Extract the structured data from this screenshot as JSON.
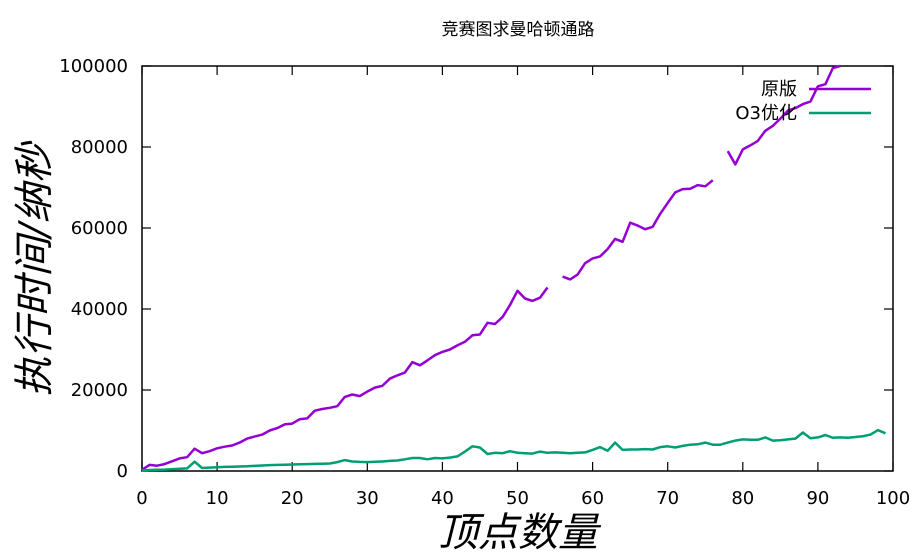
{
  "chart_data": {
    "type": "line",
    "title": "竞赛图求曼哈顿通路",
    "xlabel": "顶点数量",
    "ylabel": "执行时间/纳秒",
    "xlim": [
      0,
      100
    ],
    "ylim": [
      0,
      100000
    ],
    "x_ticks": [
      "0",
      "10",
      "20",
      "30",
      "40",
      "50",
      "60",
      "70",
      "80",
      "90",
      "100"
    ],
    "y_ticks": [
      "0",
      "20000",
      "40000",
      "60000",
      "80000",
      "100000"
    ],
    "legend_position": "top-right",
    "grid": false,
    "series": [
      {
        "name": "原版",
        "color": "#9400D3",
        "points": [
          [
            0,
            300
          ],
          [
            1,
            1500
          ],
          [
            2,
            1300
          ],
          [
            3,
            1700
          ],
          [
            4,
            2400
          ],
          [
            5,
            3100
          ],
          [
            6,
            3400
          ],
          [
            7,
            5500
          ],
          [
            8,
            4400
          ],
          [
            9,
            4900
          ],
          [
            10,
            5600
          ],
          [
            11,
            6000
          ],
          [
            12,
            6300
          ],
          [
            13,
            7000
          ],
          [
            14,
            8000
          ],
          [
            15,
            8500
          ],
          [
            16,
            9000
          ],
          [
            17,
            10000
          ],
          [
            18,
            10600
          ],
          [
            19,
            11500
          ],
          [
            20,
            11700
          ],
          [
            21,
            12800
          ],
          [
            22,
            13000
          ],
          [
            23,
            14900
          ],
          [
            24,
            15300
          ],
          [
            25,
            15600
          ],
          [
            26,
            16000
          ],
          [
            27,
            18300
          ],
          [
            28,
            18900
          ],
          [
            29,
            18500
          ],
          [
            30,
            19600
          ],
          [
            31,
            20600
          ],
          [
            32,
            21000
          ],
          [
            33,
            22800
          ],
          [
            34,
            23600
          ],
          [
            35,
            24300
          ],
          [
            36,
            26900
          ],
          [
            37,
            26100
          ],
          [
            38,
            27300
          ],
          [
            39,
            28600
          ],
          [
            40,
            29400
          ],
          [
            41,
            30000
          ],
          [
            42,
            31000
          ],
          [
            43,
            31900
          ],
          [
            44,
            33500
          ],
          [
            45,
            33700
          ],
          [
            46,
            36600
          ],
          [
            47,
            36300
          ],
          [
            48,
            38000
          ],
          [
            49,
            41000
          ],
          [
            50,
            44500
          ],
          [
            51,
            42600
          ],
          [
            52,
            42000
          ],
          [
            53,
            42800
          ],
          [
            54,
            45300
          ],
          null,
          [
            56,
            48000
          ],
          [
            57,
            47300
          ],
          [
            58,
            48500
          ],
          [
            59,
            51300
          ],
          [
            60,
            52500
          ],
          [
            61,
            53000
          ],
          [
            62,
            54800
          ],
          [
            63,
            57300
          ],
          [
            64,
            56600
          ],
          [
            65,
            61300
          ],
          [
            66,
            60600
          ],
          [
            67,
            59700
          ],
          [
            68,
            60300
          ],
          [
            69,
            63500
          ],
          [
            70,
            66200
          ],
          [
            71,
            68800
          ],
          [
            72,
            69600
          ],
          [
            73,
            69700
          ],
          [
            74,
            70600
          ],
          [
            75,
            70300
          ],
          [
            76,
            71800
          ],
          null,
          [
            78,
            79000
          ],
          [
            79,
            75700
          ],
          [
            80,
            79400
          ],
          [
            81,
            80400
          ],
          [
            82,
            81500
          ],
          [
            83,
            84000
          ],
          [
            84,
            85200
          ],
          [
            85,
            87000
          ],
          [
            86,
            89000
          ],
          [
            87,
            89600
          ],
          [
            88,
            90600
          ],
          [
            89,
            91200
          ],
          [
            90,
            95000
          ],
          [
            91,
            95500
          ],
          [
            92,
            99500
          ],
          [
            93,
            100000
          ]
        ]
      },
      {
        "name": "O3优化",
        "color": "#009E73",
        "points": [
          [
            0,
            100
          ],
          [
            1,
            250
          ],
          [
            2,
            300
          ],
          [
            3,
            350
          ],
          [
            4,
            450
          ],
          [
            5,
            550
          ],
          [
            6,
            650
          ],
          [
            7,
            2300
          ],
          [
            8,
            750
          ],
          [
            9,
            850
          ],
          [
            10,
            950
          ],
          [
            11,
            1000
          ],
          [
            12,
            1050
          ],
          [
            13,
            1100
          ],
          [
            14,
            1150
          ],
          [
            15,
            1250
          ],
          [
            16,
            1350
          ],
          [
            17,
            1450
          ],
          [
            18,
            1500
          ],
          [
            19,
            1550
          ],
          [
            20,
            1600
          ],
          [
            21,
            1650
          ],
          [
            22,
            1700
          ],
          [
            23,
            1750
          ],
          [
            24,
            1800
          ],
          [
            25,
            1850
          ],
          [
            26,
            2200
          ],
          [
            27,
            2700
          ],
          [
            28,
            2350
          ],
          [
            29,
            2250
          ],
          [
            30,
            2200
          ],
          [
            31,
            2300
          ],
          [
            32,
            2350
          ],
          [
            33,
            2500
          ],
          [
            34,
            2600
          ],
          [
            35,
            2900
          ],
          [
            36,
            3200
          ],
          [
            37,
            3200
          ],
          [
            38,
            2900
          ],
          [
            39,
            3200
          ],
          [
            40,
            3100
          ],
          [
            41,
            3300
          ],
          [
            42,
            3600
          ],
          [
            43,
            4800
          ],
          [
            44,
            6100
          ],
          [
            45,
            5800
          ],
          [
            46,
            4200
          ],
          [
            47,
            4500
          ],
          [
            48,
            4400
          ],
          [
            49,
            4900
          ],
          [
            50,
            4500
          ],
          [
            51,
            4400
          ],
          [
            52,
            4300
          ],
          [
            53,
            4800
          ],
          [
            54,
            4500
          ],
          [
            55,
            4600
          ],
          [
            56,
            4500
          ],
          [
            57,
            4400
          ],
          [
            58,
            4500
          ],
          [
            59,
            4600
          ],
          [
            60,
            5200
          ],
          [
            61,
            5900
          ],
          [
            62,
            5000
          ],
          [
            63,
            7000
          ],
          [
            64,
            5200
          ],
          [
            65,
            5300
          ],
          [
            66,
            5300
          ],
          [
            67,
            5400
          ],
          [
            68,
            5300
          ],
          [
            69,
            5900
          ],
          [
            70,
            6100
          ],
          [
            71,
            5800
          ],
          [
            72,
            6200
          ],
          [
            73,
            6500
          ],
          [
            74,
            6600
          ],
          [
            75,
            7000
          ],
          [
            76,
            6500
          ],
          [
            77,
            6500
          ],
          [
            78,
            7000
          ],
          [
            79,
            7500
          ],
          [
            80,
            7800
          ],
          [
            81,
            7700
          ],
          [
            82,
            7700
          ],
          [
            83,
            8300
          ],
          [
            84,
            7500
          ],
          [
            85,
            7600
          ],
          [
            86,
            7800
          ],
          [
            87,
            8000
          ],
          [
            88,
            9500
          ],
          [
            89,
            8100
          ],
          [
            90,
            8300
          ],
          [
            91,
            8900
          ],
          [
            92,
            8200
          ],
          [
            93,
            8300
          ],
          [
            94,
            8200
          ],
          [
            95,
            8400
          ],
          [
            96,
            8600
          ],
          [
            97,
            9000
          ],
          [
            98,
            10100
          ],
          [
            99,
            9300
          ]
        ]
      }
    ]
  }
}
